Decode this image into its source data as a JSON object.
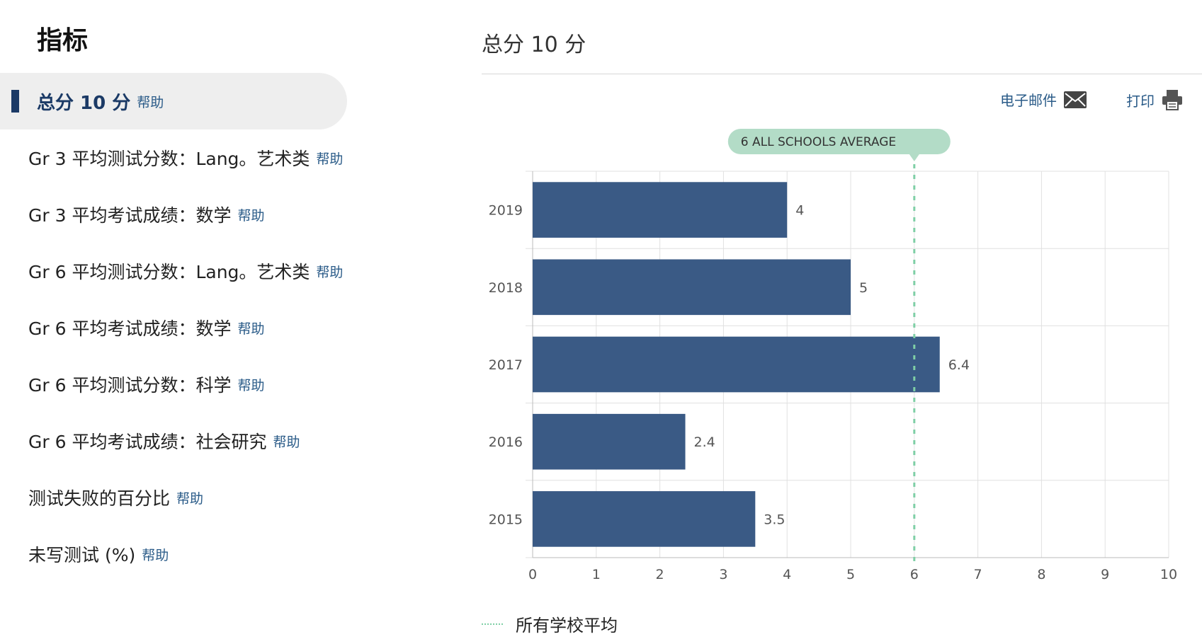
{
  "sidebar": {
    "heading": "指标",
    "items": [
      {
        "label": "总分 10 分",
        "help": "帮助",
        "active": true
      },
      {
        "label": "Gr 3 平均测试分数：Lang。艺术类",
        "help": "帮助"
      },
      {
        "label": "Gr 3 平均考试成绩：数学",
        "help": "帮助"
      },
      {
        "label": "Gr 6 平均测试分数：Lang。艺术类",
        "help": "帮助"
      },
      {
        "label": "Gr 6 平均考试成绩：数学",
        "help": "帮助"
      },
      {
        "label": "Gr 6 平均测试分数：科学",
        "help": "帮助"
      },
      {
        "label": "Gr 6 平均考试成绩：社会研究",
        "help": "帮助"
      },
      {
        "label": "测试失败的百分比",
        "help": "帮助"
      },
      {
        "label": "未写测试 (%)",
        "help": "帮助"
      }
    ]
  },
  "main": {
    "title": "总分 10 分",
    "actions": {
      "email": "电子邮件",
      "print": "打印"
    },
    "icons": {
      "email": "envelope-icon",
      "print": "printer-icon"
    },
    "legend": {
      "label": "所有学校平均"
    }
  },
  "colors": {
    "bar": "#3a5a85",
    "average": "#7fcfa6",
    "average_badge": "#b3dcc7",
    "accent": "#1b3a66",
    "link": "#2a5b88"
  },
  "chart_data": {
    "type": "bar",
    "orientation": "horizontal",
    "categories": [
      "2019",
      "2018",
      "2017",
      "2016",
      "2015"
    ],
    "values": [
      4,
      5,
      6.4,
      2.4,
      3.5
    ],
    "value_labels": [
      "4",
      "5",
      "6.4",
      "2.4",
      "3.5"
    ],
    "xlim": [
      0,
      10
    ],
    "x_ticks": [
      0,
      1,
      2,
      3,
      4,
      5,
      6,
      7,
      8,
      9,
      10
    ],
    "grid": true,
    "average": {
      "value": 6,
      "label": "6 ALL SCHOOLS AVERAGE",
      "legend": "所有学校平均"
    }
  }
}
